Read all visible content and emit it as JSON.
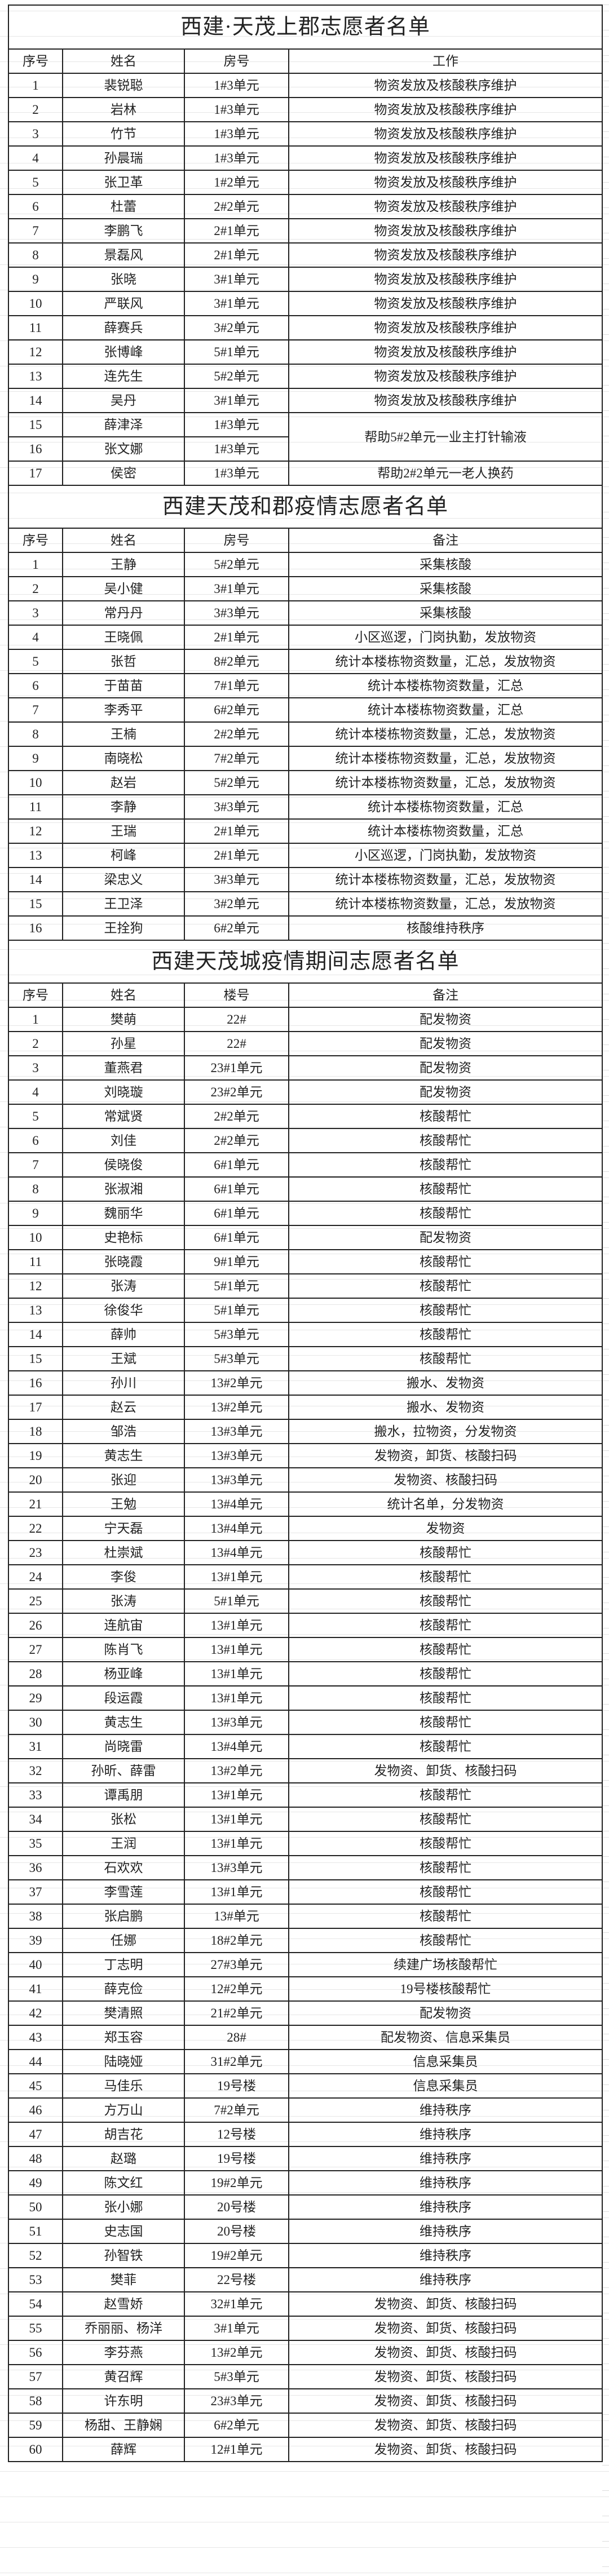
{
  "tables": [
    {
      "title": "西建·天茂上郡志愿者名单",
      "headers": [
        "序号",
        "姓名",
        "房号",
        "工作"
      ],
      "rows": [
        {
          "no": "1",
          "name": "裴锐聪",
          "room": "1#3单元",
          "note": "物资发放及核酸秩序维护"
        },
        {
          "no": "2",
          "name": "岩林",
          "room": "1#3单元",
          "note": "物资发放及核酸秩序维护"
        },
        {
          "no": "3",
          "name": "竹节",
          "room": "1#3单元",
          "note": "物资发放及核酸秩序维护"
        },
        {
          "no": "4",
          "name": "孙晨瑞",
          "room": "1#3单元",
          "note": "物资发放及核酸秩序维护"
        },
        {
          "no": "5",
          "name": "张卫革",
          "room": "1#2单元",
          "note": "物资发放及核酸秩序维护"
        },
        {
          "no": "6",
          "name": "杜蕾",
          "room": "2#2单元",
          "note": "物资发放及核酸秩序维护"
        },
        {
          "no": "7",
          "name": "李鹏飞",
          "room": "2#1单元",
          "note": "物资发放及核酸秩序维护"
        },
        {
          "no": "8",
          "name": "景磊风",
          "room": "2#1单元",
          "note": "物资发放及核酸秩序维护"
        },
        {
          "no": "9",
          "name": "张晓",
          "room": "3#1单元",
          "note": "物资发放及核酸秩序维护"
        },
        {
          "no": "10",
          "name": "严联风",
          "room": "3#1单元",
          "note": "物资发放及核酸秩序维护"
        },
        {
          "no": "11",
          "name": "薛赛兵",
          "room": "3#2单元",
          "note": "物资发放及核酸秩序维护"
        },
        {
          "no": "12",
          "name": "张博峰",
          "room": "5#1单元",
          "note": "物资发放及核酸秩序维护"
        },
        {
          "no": "13",
          "name": "连先生",
          "room": "5#2单元",
          "note": "物资发放及核酸秩序维护"
        },
        {
          "no": "14",
          "name": "吴丹",
          "room": "3#1单元",
          "note": "物资发放及核酸秩序维护"
        },
        {
          "no": "15",
          "name": "薛津泽",
          "room": "1#3单元",
          "note": "帮助5#2单元一业主打针输液",
          "note_rowspan": 2
        },
        {
          "no": "16",
          "name": "张文娜",
          "room": "1#3单元",
          "note_merged": true
        },
        {
          "no": "17",
          "name": "侯密",
          "room": "1#3单元",
          "note": "帮助2#2单元一老人换药"
        }
      ]
    },
    {
      "title": "西建天茂和郡疫情志愿者名单",
      "headers": [
        "序号",
        "姓名",
        "房号",
        "备注"
      ],
      "rows": [
        {
          "no": "1",
          "name": "王静",
          "room": "5#2单元",
          "note": "采集核酸"
        },
        {
          "no": "2",
          "name": "吴小健",
          "room": "3#1单元",
          "note": "采集核酸"
        },
        {
          "no": "3",
          "name": "常丹丹",
          "room": "3#3单元",
          "note": "采集核酸"
        },
        {
          "no": "4",
          "name": "王晓佩",
          "room": "2#1单元",
          "note": "小区巡逻，门岗执勤，发放物资"
        },
        {
          "no": "5",
          "name": "张哲",
          "room": "8#2单元",
          "note": "统计本楼栋物资数量，汇总，发放物资"
        },
        {
          "no": "6",
          "name": "于苗苗",
          "room": "7#1单元",
          "note": "统计本楼栋物资数量，汇总"
        },
        {
          "no": "7",
          "name": "李秀平",
          "room": "6#2单元",
          "note": "统计本楼栋物资数量，汇总"
        },
        {
          "no": "8",
          "name": "王楠",
          "room": "2#2单元",
          "note": "统计本楼栋物资数量，汇总，发放物资"
        },
        {
          "no": "9",
          "name": "南晓松",
          "room": "7#2单元",
          "note": "统计本楼栋物资数量，汇总，发放物资"
        },
        {
          "no": "10",
          "name": "赵岩",
          "room": "5#2单元",
          "note": "统计本楼栋物资数量，汇总，发放物资"
        },
        {
          "no": "11",
          "name": "李静",
          "room": "3#3单元",
          "note": "统计本楼栋物资数量，汇总"
        },
        {
          "no": "12",
          "name": "王瑞",
          "room": "2#1单元",
          "note": "统计本楼栋物资数量，汇总"
        },
        {
          "no": "13",
          "name": "柯峰",
          "room": "2#1单元",
          "note": "小区巡逻，门岗执勤，发放物资"
        },
        {
          "no": "14",
          "name": "梁忠义",
          "room": "3#3单元",
          "note": "统计本楼栋物资数量，汇总，发放物资"
        },
        {
          "no": "15",
          "name": "王卫泽",
          "room": "3#2单元",
          "note": "统计本楼栋物资数量，汇总，发放物资"
        },
        {
          "no": "16",
          "name": "王拴狗",
          "room": "6#2单元",
          "note": "核酸维持秩序"
        }
      ]
    },
    {
      "title": "西建天茂城疫情期间志愿者名单",
      "headers": [
        "序号",
        "姓名",
        "楼号",
        "备注"
      ],
      "rows": [
        {
          "no": "1",
          "name": "樊萌",
          "room": "22#",
          "note": "配发物资"
        },
        {
          "no": "2",
          "name": "孙星",
          "room": "22#",
          "note": "配发物资"
        },
        {
          "no": "3",
          "name": "董燕君",
          "room": "23#1单元",
          "note": "配发物资"
        },
        {
          "no": "4",
          "name": "刘晓璇",
          "room": "23#2单元",
          "note": "配发物资"
        },
        {
          "no": "5",
          "name": "常斌贤",
          "room": "2#2单元",
          "note": "核酸帮忙"
        },
        {
          "no": "6",
          "name": "刘佳",
          "room": "2#2单元",
          "note": "核酸帮忙"
        },
        {
          "no": "7",
          "name": "侯晓俊",
          "room": "6#1单元",
          "note": "核酸帮忙"
        },
        {
          "no": "8",
          "name": "张淑湘",
          "room": "6#1单元",
          "note": "核酸帮忙"
        },
        {
          "no": "9",
          "name": "魏丽华",
          "room": "6#1单元",
          "note": "核酸帮忙"
        },
        {
          "no": "10",
          "name": "史艳标",
          "room": "6#1单元",
          "note": "配发物资"
        },
        {
          "no": "11",
          "name": "张晓霞",
          "room": "9#1单元",
          "note": "核酸帮忙"
        },
        {
          "no": "12",
          "name": "张涛",
          "room": "5#1单元",
          "note": "核酸帮忙"
        },
        {
          "no": "13",
          "name": "徐俊华",
          "room": "5#1单元",
          "note": "核酸帮忙"
        },
        {
          "no": "14",
          "name": "薛帅",
          "room": "5#3单元",
          "note": "核酸帮忙"
        },
        {
          "no": "15",
          "name": "王斌",
          "room": "5#3单元",
          "note": "核酸帮忙"
        },
        {
          "no": "16",
          "name": "孙川",
          "room": "13#2单元",
          "note": "搬水、发物资"
        },
        {
          "no": "17",
          "name": "赵云",
          "room": "13#2单元",
          "note": "搬水、发物资"
        },
        {
          "no": "18",
          "name": "邹浩",
          "room": "13#3单元",
          "note": "搬水，拉物资，分发物资"
        },
        {
          "no": "19",
          "name": "黄志生",
          "room": "13#3单元",
          "note": "发物资，卸货、核酸扫码"
        },
        {
          "no": "20",
          "name": "张迎",
          "room": "13#3单元",
          "note": "发物资、核酸扫码"
        },
        {
          "no": "21",
          "name": "王勉",
          "room": "13#4单元",
          "note": "统计名单，分发物资"
        },
        {
          "no": "22",
          "name": "宁天磊",
          "room": "13#4单元",
          "note": "发物资"
        },
        {
          "no": "23",
          "name": "杜崇斌",
          "room": "13#4单元",
          "note": "核酸帮忙"
        },
        {
          "no": "24",
          "name": "李俊",
          "room": "13#1单元",
          "note": "核酸帮忙"
        },
        {
          "no": "25",
          "name": "张涛",
          "room": "5#1单元",
          "note": "核酸帮忙"
        },
        {
          "no": "26",
          "name": "连航宙",
          "room": "13#1单元",
          "note": "核酸帮忙"
        },
        {
          "no": "27",
          "name": "陈肖飞",
          "room": "13#1单元",
          "note": "核酸帮忙"
        },
        {
          "no": "28",
          "name": "杨亚峰",
          "room": "13#1单元",
          "note": "核酸帮忙"
        },
        {
          "no": "29",
          "name": "段运霞",
          "room": "13#1单元",
          "note": "核酸帮忙"
        },
        {
          "no": "30",
          "name": "黄志生",
          "room": "13#3单元",
          "note": "核酸帮忙"
        },
        {
          "no": "31",
          "name": "尚晓雷",
          "room": "13#4单元",
          "note": "核酸帮忙"
        },
        {
          "no": "32",
          "name": "孙昕、薛雷",
          "room": "13#2单元",
          "note": "发物资、卸货、核酸扫码"
        },
        {
          "no": "33",
          "name": "谭禹朋",
          "room": "13#1单元",
          "note": "核酸帮忙"
        },
        {
          "no": "34",
          "name": "张松",
          "room": "13#1单元",
          "note": "核酸帮忙"
        },
        {
          "no": "35",
          "name": "王润",
          "room": "13#1单元",
          "note": "核酸帮忙"
        },
        {
          "no": "36",
          "name": "石欢欢",
          "room": "13#3单元",
          "note": "核酸帮忙"
        },
        {
          "no": "37",
          "name": "李雪莲",
          "room": "13#1单元",
          "note": "核酸帮忙"
        },
        {
          "no": "38",
          "name": "张启鹏",
          "room": "13#单元",
          "note": "核酸帮忙"
        },
        {
          "no": "39",
          "name": "任娜",
          "room": "18#2单元",
          "note": "核酸帮忙"
        },
        {
          "no": "40",
          "name": "丁志明",
          "room": "27#3单元",
          "note": "续建广场核酸帮忙"
        },
        {
          "no": "41",
          "name": "薛克俭",
          "room": "12#2单元",
          "note": "19号楼核酸帮忙"
        },
        {
          "no": "42",
          "name": "樊清照",
          "room": "21#2单元",
          "note": "配发物资"
        },
        {
          "no": "43",
          "name": "郑玉容",
          "room": "28#",
          "note": "配发物资、信息采集员"
        },
        {
          "no": "44",
          "name": "陆晓娅",
          "room": "31#2单元",
          "note": "信息采集员"
        },
        {
          "no": "45",
          "name": "马佳乐",
          "room": "19号楼",
          "note": "信息采集员"
        },
        {
          "no": "46",
          "name": "方万山",
          "room": "7#2单元",
          "note": "维持秩序"
        },
        {
          "no": "47",
          "name": "胡吉花",
          "room": "12号楼",
          "note": "维持秩序"
        },
        {
          "no": "48",
          "name": "赵璐",
          "room": "19号楼",
          "note": "维持秩序"
        },
        {
          "no": "49",
          "name": "陈文红",
          "room": "19#2单元",
          "note": "维持秩序"
        },
        {
          "no": "50",
          "name": "张小娜",
          "room": "20号楼",
          "note": "维持秩序"
        },
        {
          "no": "51",
          "name": "史志国",
          "room": "20号楼",
          "note": "维持秩序"
        },
        {
          "no": "52",
          "name": "孙智铁",
          "room": "19#2单元",
          "note": "维持秩序"
        },
        {
          "no": "53",
          "name": "樊菲",
          "room": "22号楼",
          "note": "维持秩序"
        },
        {
          "no": "54",
          "name": "赵雪娇",
          "room": "32#1单元",
          "note": "发物资、卸货、核酸扫码"
        },
        {
          "no": "55",
          "name": "乔丽丽、杨洋",
          "room": "3#1单元",
          "note": "发物资、卸货、核酸扫码"
        },
        {
          "no": "56",
          "name": "李芬燕",
          "room": "13#2单元",
          "note": "发物资、卸货、核酸扫码"
        },
        {
          "no": "57",
          "name": "黄召辉",
          "room": "5#3单元",
          "note": "发物资、卸货、核酸扫码"
        },
        {
          "no": "58",
          "name": "许东明",
          "room": "23#3单元",
          "note": "发物资、卸货、核酸扫码"
        },
        {
          "no": "59",
          "name": "杨甜、王静娴",
          "room": "6#2单元",
          "note": "发物资、卸货、核酸扫码"
        },
        {
          "no": "60",
          "name": "薛辉",
          "room": "12#1单元",
          "note": "发物资、卸货、核酸扫码"
        }
      ]
    }
  ]
}
